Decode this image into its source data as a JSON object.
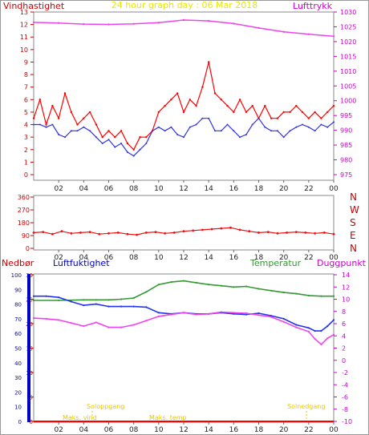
{
  "colors": {
    "wind": "#ff0000",
    "wind_dark": "#ff2a2a",
    "avgwind": "#3333dd",
    "pressure": "#ee44ee",
    "title": "#e8e800",
    "winddir": "#ee1111",
    "rain": "#ff0000",
    "humidity": "#2233ee",
    "temperature": "#339933",
    "dewpoint": "#ee44ee",
    "sun": "#e8c800",
    "rain_axis": "#0000cc",
    "hum_axis": "#cc0000",
    "temp_axis": "#cc00cc"
  },
  "chart_data": [
    {
      "type": "line",
      "title": "24 hour graph day : 06 Mar 2018",
      "left_label": "Vindhastighet",
      "right_label": "Lufttrykk",
      "x_ticks": [
        "02",
        "04",
        "06",
        "08",
        "10",
        "12",
        "14",
        "16",
        "18",
        "20",
        "22",
        "00"
      ],
      "xlim": [
        0,
        24
      ],
      "y_left_ticks": [
        "0",
        "1",
        "2",
        "3",
        "4",
        "5",
        "6",
        "7",
        "8",
        "9",
        "10",
        "11",
        "12",
        "13"
      ],
      "y_left_range": [
        0,
        13
      ],
      "y_right_ticks": [
        "975",
        "980",
        "985",
        "990",
        "995",
        "1000",
        "1005",
        "1010",
        "1015",
        "1020",
        "1025",
        "1030"
      ],
      "y_right_range": [
        975,
        1030
      ],
      "series": [
        {
          "axis": "left",
          "x": [
            0.0,
            0.5,
            1.0,
            1.5,
            2.0,
            2.5,
            3.0,
            3.5,
            4.0,
            4.5,
            5.0,
            5.5,
            6.0,
            6.5,
            7.0,
            7.5,
            8.0,
            8.5,
            9.0,
            9.5,
            10.0,
            10.5,
            11.0,
            11.5,
            12.0,
            12.5,
            13.0,
            13.5,
            14.0,
            14.5,
            15.0,
            15.5,
            16.0,
            16.5,
            17.0,
            17.5,
            18.0,
            18.5,
            19.0,
            19.5,
            20.0,
            20.5,
            21.0,
            21.5,
            22.0,
            22.5,
            23.0,
            23.5,
            24.0
          ],
          "values": [
            4.5,
            6.0,
            4.0,
            5.5,
            4.5,
            6.5,
            5.0,
            4.0,
            4.5,
            5.0,
            4.0,
            3.0,
            3.5,
            3.0,
            3.5,
            2.5,
            2.0,
            3.0,
            3.0,
            3.5,
            5.0,
            5.5,
            6.0,
            6.5,
            5.0,
            6.0,
            5.5,
            7.0,
            9.0,
            6.5,
            6.0,
            5.5,
            5.0,
            6.0,
            5.0,
            5.5,
            4.5,
            5.5,
            4.5,
            4.5,
            5.0,
            5.0,
            5.5,
            5.0,
            4.5,
            5.0,
            4.5,
            5.0,
            5.5
          ]
        },
        {
          "axis": "left",
          "x": [
            0.0,
            0.5,
            1.0,
            1.5,
            2.0,
            2.5,
            3.0,
            3.5,
            4.0,
            4.5,
            5.0,
            5.5,
            6.0,
            6.5,
            7.0,
            7.5,
            8.0,
            8.5,
            9.0,
            9.5,
            10.0,
            10.5,
            11.0,
            11.5,
            12.0,
            12.5,
            13.0,
            13.5,
            14.0,
            14.5,
            15.0,
            15.5,
            16.0,
            16.5,
            17.0,
            17.5,
            18.0,
            18.5,
            19.0,
            19.5,
            20.0,
            20.5,
            21.0,
            21.5,
            22.0,
            22.5,
            23.0,
            23.5,
            24.0
          ],
          "values": [
            4.0,
            4.0,
            3.8,
            4.0,
            3.2,
            3.0,
            3.5,
            3.5,
            3.8,
            3.5,
            3.0,
            2.5,
            2.8,
            2.2,
            2.5,
            1.8,
            1.5,
            2.0,
            2.5,
            3.5,
            3.8,
            3.5,
            3.8,
            3.2,
            3.0,
            3.8,
            4.0,
            4.5,
            4.5,
            3.5,
            3.5,
            4.0,
            3.5,
            3.0,
            3.2,
            4.0,
            4.5,
            3.8,
            3.5,
            3.5,
            3.0,
            3.5,
            3.8,
            4.0,
            3.8,
            3.5,
            4.0,
            3.8,
            4.2
          ]
        },
        {
          "axis": "right",
          "x": [
            0,
            2,
            4,
            6,
            8,
            10,
            12,
            14,
            16,
            18,
            20,
            22,
            24
          ],
          "values": [
            1026.5,
            1026.3,
            1025.9,
            1025.8,
            1026.0,
            1026.4,
            1027.3,
            1027.0,
            1026.1,
            1024.6,
            1023.3,
            1022.5,
            1021.8
          ]
        }
      ]
    },
    {
      "type": "scatter",
      "x_ticks": [
        "02",
        "04",
        "06",
        "08",
        "10",
        "12",
        "14",
        "16",
        "18",
        "20",
        "22",
        "00"
      ],
      "xlim": [
        0,
        24
      ],
      "y_left_ticks": [
        "0",
        "90",
        "180",
        "270",
        "360"
      ],
      "y_range": [
        0,
        360
      ],
      "y_right_labels": [
        "N",
        "E",
        "S",
        "W",
        "N"
      ],
      "x": [
        0.0,
        0.75,
        1.5,
        2.25,
        3.0,
        3.75,
        4.5,
        5.25,
        6.0,
        6.75,
        7.5,
        8.25,
        9.0,
        9.75,
        10.5,
        11.25,
        12.0,
        12.75,
        13.5,
        14.25,
        15.0,
        15.75,
        16.5,
        17.25,
        18.0,
        18.75,
        19.5,
        20.25,
        21.0,
        21.75,
        22.5,
        23.25,
        24.0
      ],
      "values": [
        110,
        115,
        100,
        120,
        105,
        110,
        115,
        100,
        105,
        110,
        100,
        95,
        110,
        115,
        105,
        110,
        120,
        125,
        130,
        135,
        140,
        145,
        130,
        120,
        110,
        115,
        105,
        110,
        115,
        110,
        105,
        110,
        100
      ]
    },
    {
      "type": "line",
      "left_labels": [
        "Nedbør",
        "Luftfuktighet"
      ],
      "right_labels": [
        "Temperatur",
        "Duggpunkt"
      ],
      "x_ticks": [
        "02",
        "04",
        "06",
        "08",
        "10",
        "12",
        "14",
        "16",
        "18",
        "20",
        "22",
        "00"
      ],
      "xlim": [
        0,
        24
      ],
      "y_rain_ticks": [
        "0",
        "10",
        "20",
        "30",
        "40",
        "50",
        "60",
        "70",
        "80",
        "90",
        "100"
      ],
      "y_hum_ticks": [
        "0",
        "5",
        "10",
        "15",
        "20",
        "25",
        "30"
      ],
      "y_temp_ticks": [
        "-10",
        "-8",
        "-6",
        "-4",
        "-2",
        "0",
        "2",
        "4",
        "6",
        "8",
        "10",
        "12",
        "14"
      ],
      "y_temp_range": [
        -10,
        14
      ],
      "annotations": [
        "Soloppgang",
        "Solnedgang",
        "Maks. vind",
        "Maks. temp"
      ],
      "series": [
        {
          "axis": "temp",
          "x": [
            0,
            2,
            4,
            5,
            6,
            7,
            8,
            9,
            10,
            11,
            12,
            13,
            14,
            15,
            16,
            17,
            18,
            19,
            20,
            21,
            22,
            23,
            24
          ],
          "values": [
            9.8,
            9.8,
            9.9,
            9.9,
            9.9,
            10.0,
            10.2,
            11.2,
            12.4,
            12.8,
            13.0,
            12.7,
            12.4,
            12.2,
            12.0,
            12.1,
            11.7,
            11.4,
            11.1,
            10.9,
            10.6,
            10.5,
            10.5
          ]
        },
        {
          "axis": "temp",
          "x": [
            0,
            1,
            2,
            3,
            4,
            5,
            6,
            7,
            8,
            9,
            10,
            11,
            12,
            13,
            14,
            15,
            16,
            17,
            18,
            19,
            20,
            21,
            22,
            22.5,
            23,
            23.5,
            24
          ],
          "values": [
            10.5,
            10.5,
            10.3,
            9.6,
            9.0,
            9.2,
            8.8,
            8.8,
            8.8,
            8.7,
            7.8,
            7.6,
            7.8,
            7.6,
            7.6,
            7.8,
            7.6,
            7.5,
            7.7,
            7.3,
            6.8,
            5.8,
            5.3,
            4.8,
            4.8,
            5.6,
            6.6
          ]
        },
        {
          "axis": "temp",
          "x": [
            0,
            1,
            2,
            3,
            4,
            5,
            6,
            7,
            8,
            9,
            10,
            11,
            12,
            13,
            14,
            15,
            16,
            17,
            18,
            19,
            20,
            21,
            22,
            22.5,
            23,
            23.5,
            24
          ],
          "values": [
            6.9,
            6.8,
            6.6,
            6.1,
            5.6,
            6.2,
            5.4,
            5.4,
            5.8,
            6.5,
            7.2,
            7.5,
            7.8,
            7.5,
            7.6,
            7.9,
            7.8,
            7.7,
            7.4,
            7.1,
            6.3,
            5.4,
            4.7,
            3.5,
            2.6,
            3.6,
            4.2
          ]
        }
      ],
      "rain_values": [
        0,
        0
      ]
    }
  ]
}
